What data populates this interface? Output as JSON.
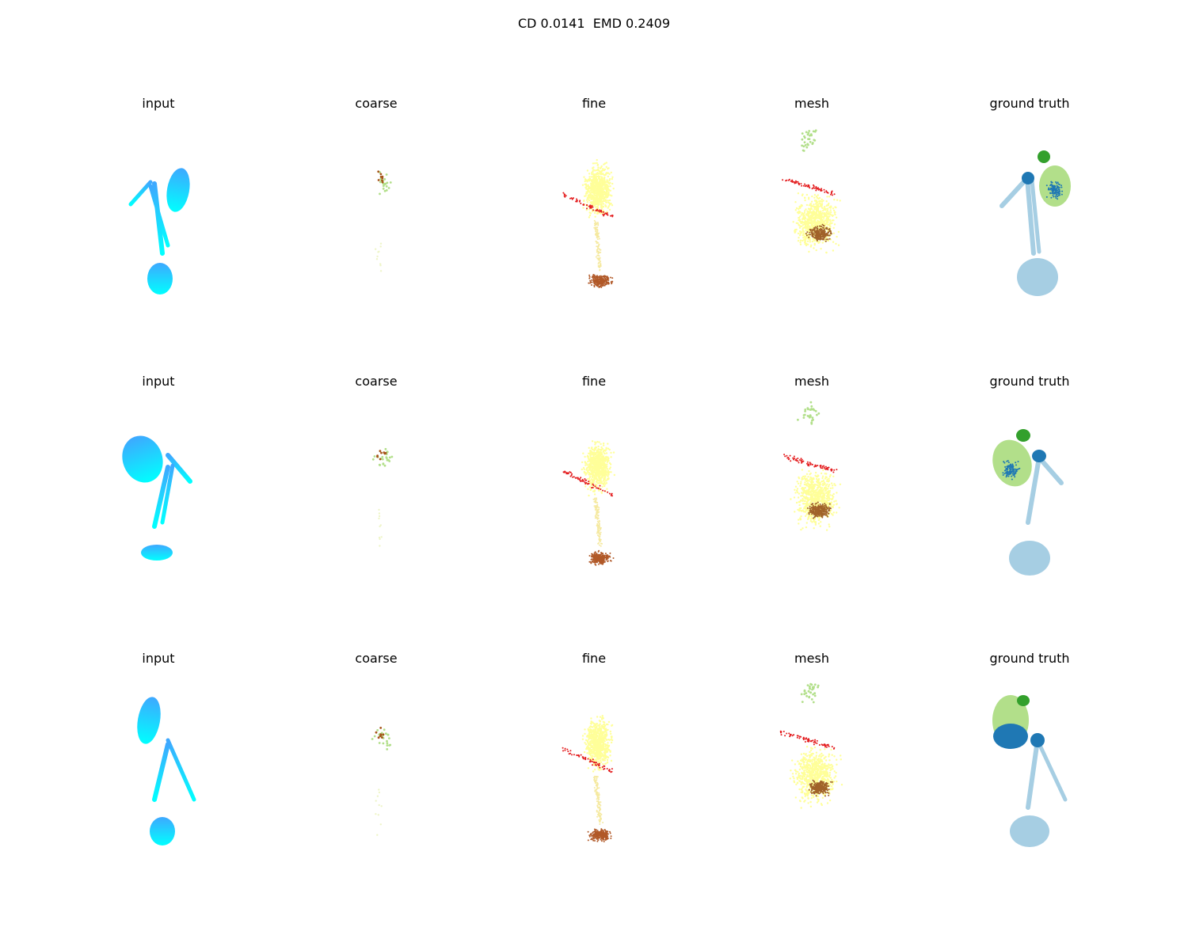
{
  "figure": {
    "title": "CD 0.0141  EMD 0.2409"
  },
  "panel_titles": [
    "input",
    "coarse",
    "fine",
    "mesh",
    "ground truth"
  ],
  "colors": {
    "input_dark": "#3ea8ff",
    "input_light": "#00ffff",
    "coarse_green": "#b2df8a",
    "coarse_brown": "#a6541a",
    "fine_yellow": "#ffff99",
    "fine_red": "#e31a1c",
    "fine_brown": "#b15928",
    "gt_light_blue": "#a6cee3",
    "gt_dark_blue": "#1f78b4",
    "gt_light_green": "#b2df8a",
    "gt_dark_green": "#33a02c"
  },
  "chart_data": {
    "type": "scatter",
    "rows": 3,
    "columns": 5,
    "grid": false,
    "axes_visible": false
  }
}
